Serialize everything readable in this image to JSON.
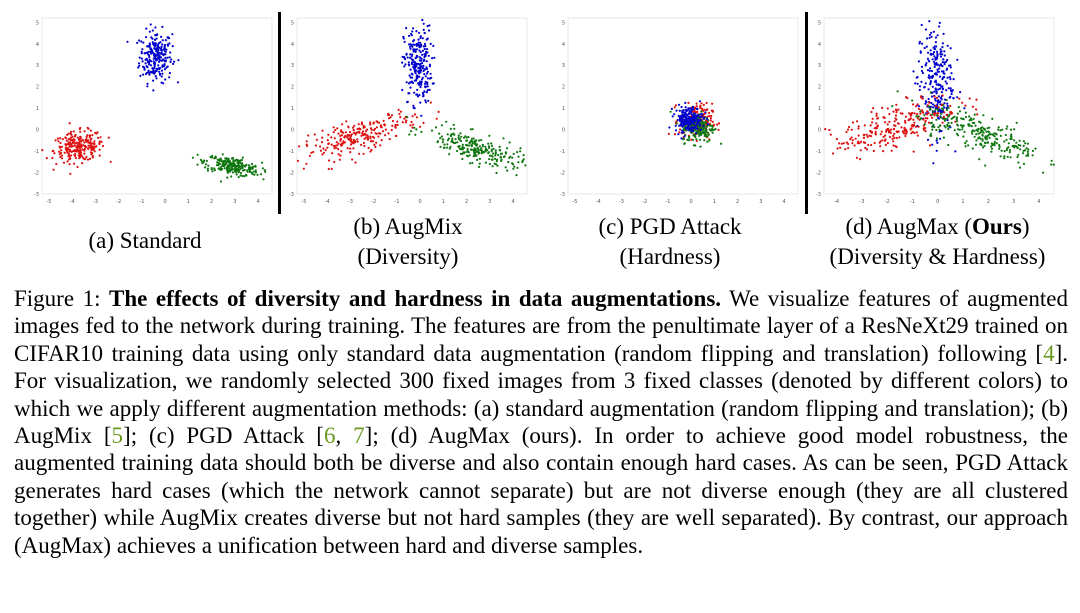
{
  "panels": [
    {
      "id": "a",
      "caption_line1": "(a) Standard",
      "caption_line2": "",
      "chart_data": {
        "type": "scatter",
        "title": "",
        "x_ticks": [
          "-5",
          "-4",
          "-3",
          "-2",
          "-1",
          "0",
          "1",
          "2",
          "3",
          "4"
        ],
        "y_ticks": [
          "5",
          "4",
          "3",
          "2",
          "1",
          "0",
          "-1",
          "-2",
          "-3"
        ],
        "xlim": [
          -5.3,
          4.6
        ],
        "ylim": [
          -3,
          5.2
        ],
        "clusters": [
          {
            "color": "#0000cc",
            "cx": -0.4,
            "cy": 3.4,
            "sx": 0.35,
            "sy": 0.6,
            "rot": 0,
            "n": 240
          },
          {
            "color": "#dd1111",
            "cx": -3.7,
            "cy": -0.8,
            "sx": 0.55,
            "sy": 0.35,
            "rot": 0.15,
            "n": 240
          },
          {
            "color": "#117711",
            "cx": 2.9,
            "cy": -1.7,
            "sx": 0.6,
            "sy": 0.2,
            "rot": -0.2,
            "n": 240
          }
        ]
      }
    },
    {
      "id": "b",
      "caption_line1": "(b) AugMix",
      "caption_line2": "(Diversity)",
      "chart_data": {
        "type": "scatter",
        "title": "",
        "x_ticks": [
          "-5",
          "-4",
          "-3",
          "-2",
          "-1",
          "0",
          "1",
          "2",
          "3",
          "4"
        ],
        "y_ticks": [
          "5",
          "4",
          "3",
          "2",
          "1",
          "0",
          "-1",
          "-2",
          "-3"
        ],
        "xlim": [
          -5.3,
          4.6
        ],
        "ylim": [
          -3,
          5.2
        ],
        "clusters": [
          {
            "color": "#0000cc",
            "cx": -0.1,
            "cy": 3.0,
            "sx": 0.3,
            "sy": 0.9,
            "rot": 0,
            "n": 240
          },
          {
            "color": "#dd1111",
            "cx": -2.6,
            "cy": -0.3,
            "sx": 1.3,
            "sy": 0.35,
            "rot": 0.35,
            "n": 240
          },
          {
            "color": "#117711",
            "cx": 2.4,
            "cy": -0.9,
            "sx": 1.1,
            "sy": 0.3,
            "rot": -0.35,
            "n": 240
          }
        ]
      }
    },
    {
      "id": "c",
      "caption_line1": "(c) PGD Attack",
      "caption_line2": "(Hardness)",
      "chart_data": {
        "type": "scatter",
        "title": "",
        "x_ticks": [
          "-5",
          "-4",
          "-3",
          "-2",
          "-1",
          "0",
          "1",
          "2",
          "3",
          "4"
        ],
        "y_ticks": [
          "5",
          "4",
          "3",
          "2",
          "1",
          "0",
          "-1",
          "-2",
          "-3"
        ],
        "xlim": [
          -5.3,
          4.6
        ],
        "ylim": [
          -3,
          5.2
        ],
        "clusters": [
          {
            "color": "#dd1111",
            "cx": 0.2,
            "cy": 0.4,
            "sx": 0.35,
            "sy": 0.4,
            "rot": 0,
            "n": 200
          },
          {
            "color": "#117711",
            "cx": 0.3,
            "cy": 0.1,
            "sx": 0.35,
            "sy": 0.35,
            "rot": 0,
            "n": 200
          },
          {
            "color": "#0000cc",
            "cx": -0.1,
            "cy": 0.5,
            "sx": 0.3,
            "sy": 0.3,
            "rot": 0,
            "n": 200
          }
        ]
      }
    },
    {
      "id": "d",
      "caption_line1": "(d) AugMax (",
      "caption_bold": "Ours",
      "caption_after": ")",
      "caption_line2": "(Diversity & Hardness)",
      "chart_data": {
        "type": "scatter",
        "title": "",
        "x_ticks": [
          "-4",
          "-3",
          "-2",
          "-1",
          "0",
          "1",
          "2",
          "3",
          "4"
        ],
        "y_ticks": [
          "5",
          "4",
          "3",
          "2",
          "1",
          "0",
          "-1",
          "-2",
          "-3"
        ],
        "xlim": [
          -4.5,
          4.6
        ],
        "ylim": [
          -3,
          5.2
        ],
        "clusters": [
          {
            "color": "#0000cc",
            "cx": -0.1,
            "cy": 2.3,
            "sx": 0.35,
            "sy": 1.3,
            "rot": 0,
            "n": 260
          },
          {
            "color": "#dd1111",
            "cx": -1.6,
            "cy": 0.2,
            "sx": 1.3,
            "sy": 0.45,
            "rot": 0.4,
            "n": 260
          },
          {
            "color": "#117711",
            "cx": 1.7,
            "cy": -0.2,
            "sx": 1.3,
            "sy": 0.4,
            "rot": -0.45,
            "n": 260
          }
        ]
      }
    }
  ],
  "caption": {
    "lead": "Figure 1: ",
    "bold": "The effects of diversity and hardness in data augmentations.",
    "s1": " We visualize features of augmented images fed to the network during training. The features are from the penultimate layer of a ResNeXt29 trained on CIFAR10 training data using only standard data augmentation (random flipping and translation) following [",
    "c1": "4",
    "s2": "]. For visualization, we randomly selected 300 fixed images from 3 fixed classes (denoted by different colors) to which we apply different augmentation methods: (a) standard augmentation (random flipping and translation); (b) AugMix [",
    "c2": "5",
    "s3": "]; (c) PGD Attack [",
    "c3": "6",
    "s4": ", ",
    "c4": "7",
    "s5": "]; (d) AugMax (ours). In order to achieve good model robustness, the augmented training data should both be diverse and also contain enough hard cases. As can be seen, PGD Attack generates hard cases (which the network cannot separate) but are not diverse enough (they are all clustered together) while AugMix creates diverse but not hard samples (they are well separated). By contrast, our approach (AugMax) achieves a unification between hard and diverse samples."
  }
}
